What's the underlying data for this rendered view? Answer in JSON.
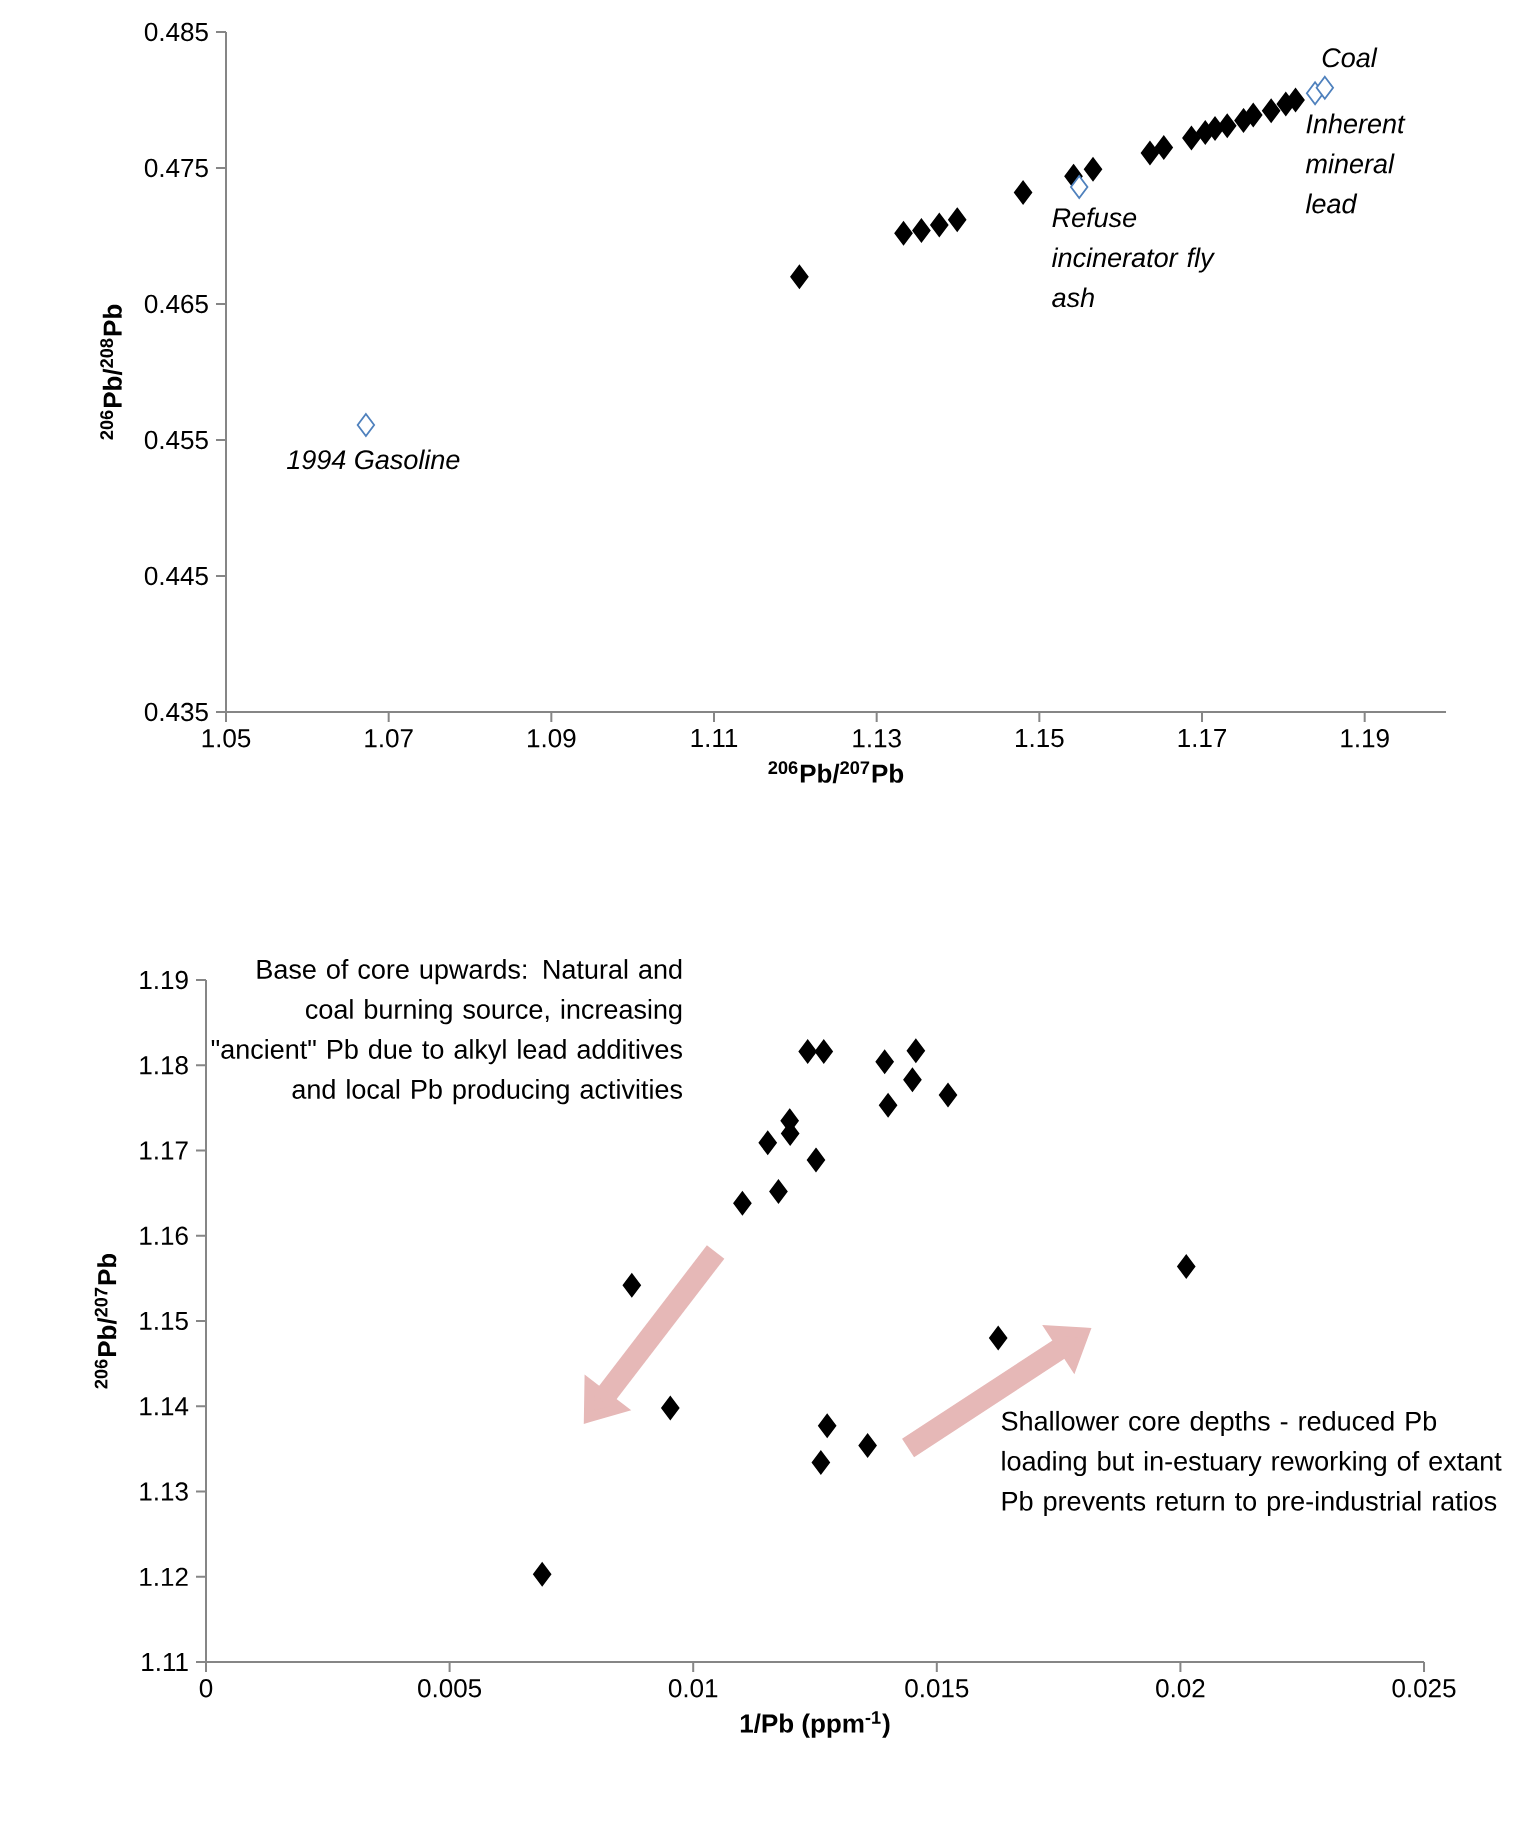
{
  "chart_data": [
    {
      "type": "scatter",
      "xlabel": "$^{206}$Pb/$^{207}$Pb",
      "ylabel": "$^{206}$Pb/$^{208}$Pb",
      "xlim": [
        1.05,
        1.2
      ],
      "ylim": [
        0.435,
        0.485
      ],
      "xticks": [
        1.05,
        1.07,
        1.09,
        1.11,
        1.13,
        1.15,
        1.17,
        1.19
      ],
      "yticks": [
        0.435,
        0.445,
        0.455,
        0.465,
        0.475,
        0.485
      ],
      "marker": "diamond",
      "grid": false,
      "legend": false,
      "series": [
        {
          "color": "#000000",
          "x": [
            1.1205,
            1.1333,
            1.1355,
            1.1377,
            1.1399,
            1.148,
            1.1542,
            1.1566,
            1.1636,
            1.1653,
            1.1687,
            1.1704,
            1.1716,
            1.1731,
            1.1751,
            1.1763,
            1.1785,
            1.1803,
            1.1815
          ],
          "values": [
            0.467,
            0.4702,
            0.4704,
            0.4708,
            0.4712,
            0.4732,
            0.4744,
            0.4749,
            0.4761,
            0.4765,
            0.4772,
            0.4776,
            0.4779,
            0.4781,
            0.4785,
            0.4789,
            0.4792,
            0.4797,
            0.48
          ]
        },
        {
          "color": "#4f81bd",
          "x": [
            1.0672,
            1.1549,
            1.1839,
            1.1851
          ],
          "values": [
            0.4561,
            0.4736,
            0.4805,
            0.4809
          ]
        }
      ],
      "annotations": [
        {
          "text": "1994 Gasoline",
          "x": 1.0672,
          "y": 0.4561
        },
        {
          "text": "Refuse incinerator fly ash",
          "x": 1.1549,
          "y": 0.4736
        },
        {
          "text": "Inherent mineral lead",
          "x": 1.1839,
          "y": 0.4805
        },
        {
          "text": "Coal",
          "x": 1.1851,
          "y": 0.4809
        }
      ]
    },
    {
      "type": "scatter",
      "xlabel": "1/Pb (ppm$^{-1}$)",
      "ylabel": "$^{206}$Pb/$^{207}$Pb",
      "xlim": [
        0,
        0.025
      ],
      "ylim": [
        1.11,
        1.19
      ],
      "xticks": [
        0,
        0.005,
        0.01,
        0.015,
        0.02,
        0.025
      ],
      "yticks": [
        1.11,
        1.12,
        1.13,
        1.14,
        1.15,
        1.16,
        1.17,
        1.18,
        1.19
      ],
      "marker": "diamond",
      "grid": false,
      "legend": false,
      "series": [
        {
          "color": "#000000",
          "x": [
            0.0069,
            0.00874,
            0.00953,
            0.01101,
            0.01175,
            0.01153,
            0.01199,
            0.01198,
            0.01252,
            0.01235,
            0.01268,
            0.01262,
            0.01275,
            0.01358,
            0.01393,
            0.014,
            0.0145,
            0.01457,
            0.01523,
            0.01626,
            0.02012
          ],
          "values": [
            1.1203,
            1.1542,
            1.1398,
            1.1638,
            1.1652,
            1.1709,
            1.172,
            1.1735,
            1.1689,
            1.1816,
            1.1816,
            1.1334,
            1.1377,
            1.1354,
            1.1804,
            1.1753,
            1.1783,
            1.1817,
            1.1765,
            1.148,
            1.1564
          ]
        }
      ],
      "annotations": [
        "Base of core upwards: Natural and coal burning source, increasing \"ancient\" Pb due to alkyl lead additives and local Pb producing activities",
        "Shallower core depths - reduced Pb loading but in-estuary reworking of extant Pb prevents return to pre-industrial ratios"
      ]
    }
  ]
}
